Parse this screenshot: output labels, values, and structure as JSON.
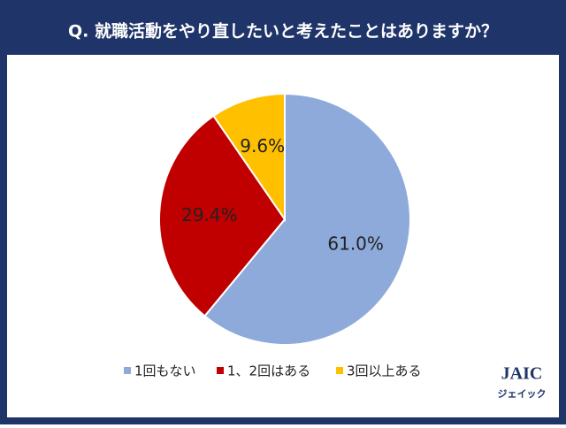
{
  "chart_data": {
    "type": "pie",
    "title": "Q. 就職活動をやり直したいと考えたことはありますか？",
    "categories": [
      "1回もない",
      "1、2回はある",
      "3回以上ある"
    ],
    "values": [
      61.0,
      29.4,
      9.6
    ],
    "value_labels": [
      "61.0%",
      "29.4%",
      "9.6%"
    ],
    "colors": [
      "#8eaadb",
      "#c00000",
      "#ffc000"
    ],
    "legend": "bottom"
  },
  "logo": {
    "text": "JAIC",
    "subtext": "ジェイック"
  }
}
